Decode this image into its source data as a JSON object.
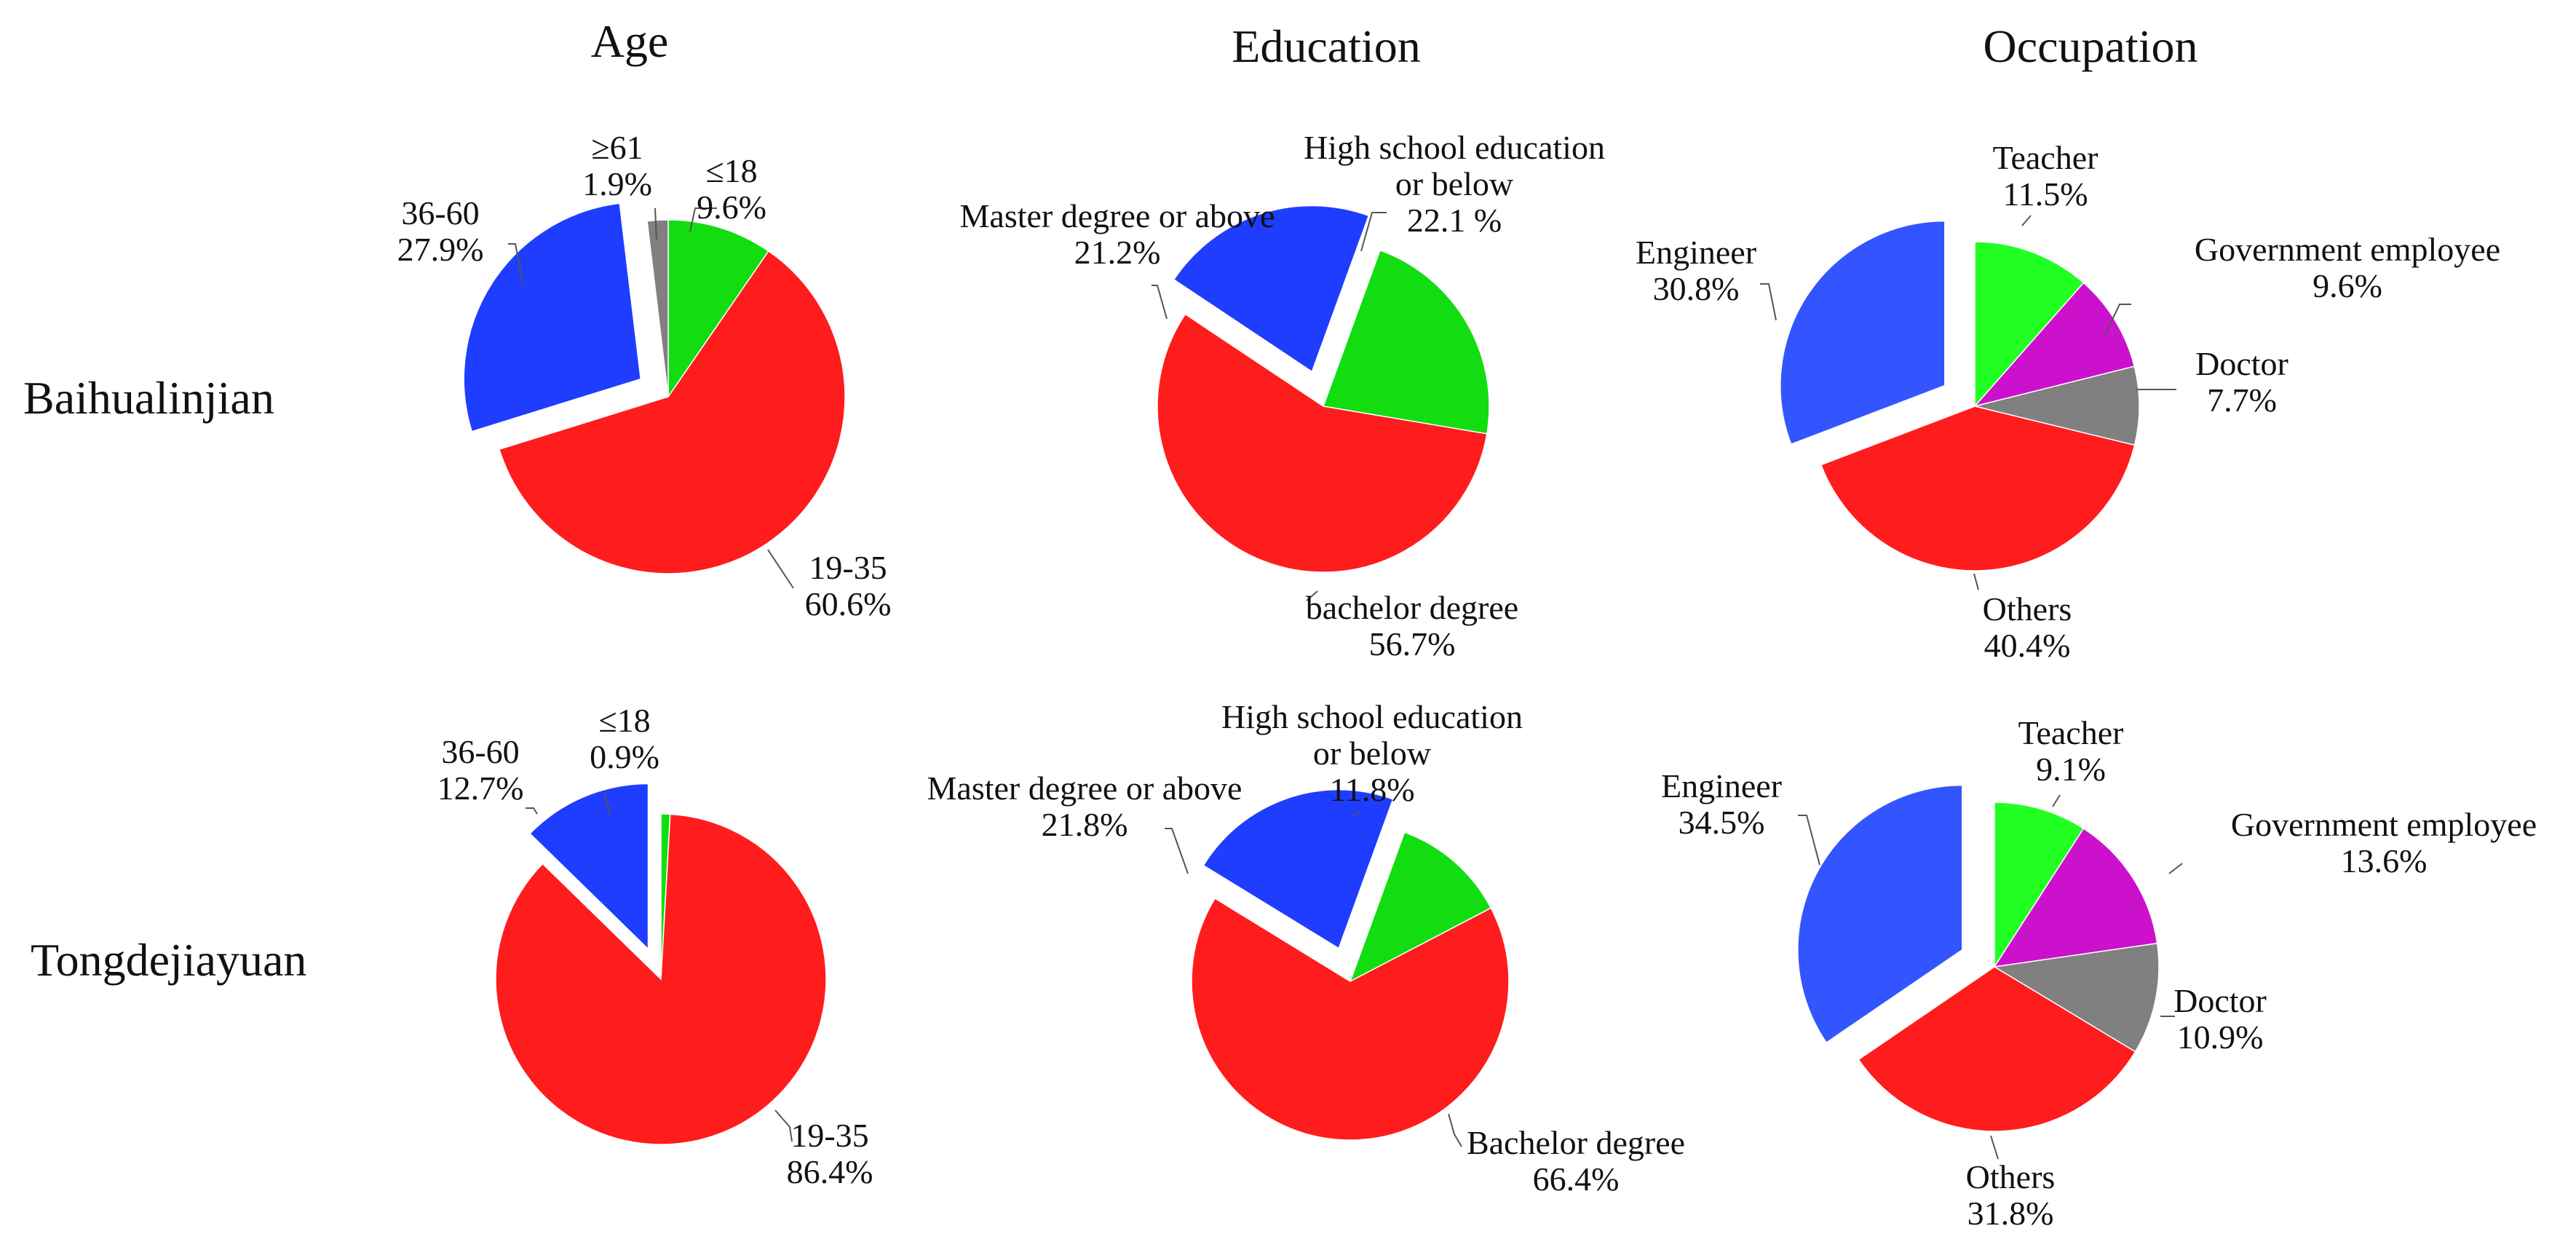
{
  "columns": [
    "Age",
    "Education",
    "Occupation"
  ],
  "rows": [
    "Baihualinjian",
    "Tongdejiayuan"
  ],
  "colors": {
    "blue": "#1f3dff",
    "blue_light": "#3355ff",
    "red": "#ff1c1c",
    "green": "#11dd11",
    "green_light": "#22ff22",
    "gray": "#808080",
    "magenta": "#cc11cc"
  },
  "chart_data": [
    {
      "type": "pie",
      "row": "Baihualinjian",
      "column": "Age",
      "slices": [
        {
          "label": "≤18",
          "value": 9.6,
          "pct_text": "9.6%",
          "color": "#11dd11"
        },
        {
          "label": "19-35",
          "value": 60.6,
          "pct_text": "60.6%",
          "color": "#ff1c1c"
        },
        {
          "label": "36-60",
          "value": 27.9,
          "pct_text": "27.9%",
          "color": "#1f3dff",
          "exploded": true
        },
        {
          "label": "≥61",
          "value": 1.9,
          "pct_text": "1.9%",
          "color": "#808080"
        }
      ]
    },
    {
      "type": "pie",
      "row": "Baihualinjian",
      "column": "Education",
      "slices": [
        {
          "label": "High school education or below",
          "label_lines": [
            "High school education",
            "or below"
          ],
          "value": 22.1,
          "pct_text": "22.1 %",
          "color": "#11dd11"
        },
        {
          "label": "bachelor degree",
          "value": 56.7,
          "pct_text": "56.7%",
          "color": "#ff1c1c"
        },
        {
          "label": "Master degree or above",
          "value": 21.2,
          "pct_text": "21.2%",
          "color": "#1f3dff",
          "exploded": true
        }
      ]
    },
    {
      "type": "pie",
      "row": "Baihualinjian",
      "column": "Occupation",
      "slices": [
        {
          "label": "Teacher",
          "value": 11.5,
          "pct_text": "11.5%",
          "color": "#22ff22"
        },
        {
          "label": "Government employee",
          "value": 9.6,
          "pct_text": "9.6%",
          "color": "#cc11cc"
        },
        {
          "label": "Doctor",
          "value": 7.7,
          "pct_text": "7.7%",
          "color": "#808080"
        },
        {
          "label": "Others",
          "value": 40.4,
          "pct_text": "40.4%",
          "color": "#ff1c1c"
        },
        {
          "label": "Engineer",
          "value": 30.8,
          "pct_text": "30.8%",
          "color": "#3355ff",
          "exploded": true
        }
      ]
    },
    {
      "type": "pie",
      "row": "Tongdejiayuan",
      "column": "Age",
      "slices": [
        {
          "label": "≤18",
          "value": 0.9,
          "pct_text": "0.9%",
          "color": "#11dd11"
        },
        {
          "label": "19-35",
          "value": 86.4,
          "pct_text": "86.4%",
          "color": "#ff1c1c"
        },
        {
          "label": "36-60",
          "value": 12.7,
          "pct_text": "12.7%",
          "color": "#1f3dff",
          "exploded": true
        }
      ]
    },
    {
      "type": "pie",
      "row": "Tongdejiayuan",
      "column": "Education",
      "slices": [
        {
          "label": "High school education or below",
          "label_lines": [
            "High school education",
            "or below"
          ],
          "value": 11.8,
          "pct_text": "11.8%",
          "color": "#11dd11"
        },
        {
          "label": "Bachelor degree",
          "value": 66.4,
          "pct_text": "66.4%",
          "color": "#ff1c1c"
        },
        {
          "label": "Master degree or above",
          "value": 21.8,
          "pct_text": "21.8%",
          "color": "#1f3dff",
          "exploded": true
        }
      ]
    },
    {
      "type": "pie",
      "row": "Tongdejiayuan",
      "column": "Occupation",
      "slices": [
        {
          "label": "Teacher",
          "value": 9.1,
          "pct_text": "9.1%",
          "color": "#22ff22"
        },
        {
          "label": "Government employee",
          "value": 13.6,
          "pct_text": "13.6%",
          "color": "#cc11cc"
        },
        {
          "label": "Doctor",
          "value": 10.9,
          "pct_text": "10.9%",
          "color": "#808080"
        },
        {
          "label": "Others",
          "value": 31.8,
          "pct_text": "31.8%",
          "color": "#ff1c1c"
        },
        {
          "label": "Engineer",
          "value": 34.5,
          "pct_text": "34.5%",
          "color": "#3355ff",
          "exploded": true
        }
      ]
    }
  ]
}
